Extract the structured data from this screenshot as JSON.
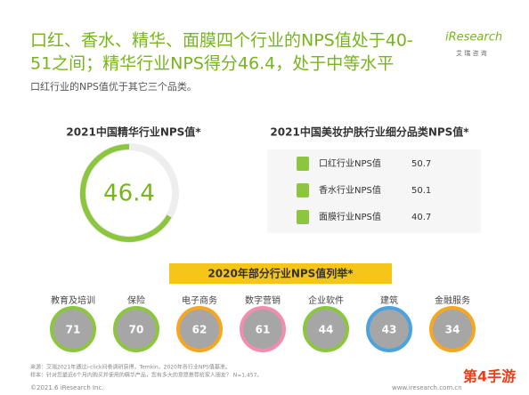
{
  "header": {
    "title_lines": [
      "口红、香水、精华、面膜四个行业的NPS值处于40-",
      "51之间；精华行业NPS得分46.4，处于中等水平"
    ],
    "subtitle": "口红行业的NPS值优于其它三个品类。",
    "logo": "iResearch",
    "logo_sub": "艾 瑞 咨 询"
  },
  "left_panel": {
    "title": "2021中国精华行业NPS值*",
    "value": "46.4"
  },
  "right_panel": {
    "title": "2021中国美妆护肤行业细分品类NPS值*",
    "rows": [
      [
        "口红行业NPS值",
        "50.7"
      ],
      [
        "香水行业NPS值",
        "50.1"
      ],
      [
        "面膜行业NPS值",
        "40.7"
      ]
    ]
  },
  "industries": {
    "title": "2020年部分行业NPS值列举*",
    "items": [
      {
        "label": "教育及培训",
        "value": "71",
        "color": "#8cc63f"
      },
      {
        "label": "保险",
        "value": "70",
        "color": "#8cc63f"
      },
      {
        "label": "电子商务",
        "value": "62",
        "color": "#f5a623"
      },
      {
        "label": "数字营销",
        "value": "61",
        "color": "#f28cb1"
      },
      {
        "label": "企业软件",
        "value": "44",
        "color": "#8cc63f"
      },
      {
        "label": "建筑",
        "value": "43",
        "color": "#4aa3df"
      },
      {
        "label": "金融服务",
        "value": "34",
        "color": "#f5a623"
      }
    ]
  },
  "footer": {
    "source": "来源：艾瑞2021年通过i-click问卷调研获得，Temkin，2020年各行业NPS值基准。",
    "sample": "样本：针对您最近6个月内购买并使用的精华产品，您有多大的意愿推荐给家人朋友？ N=1,457。",
    "copyright": "©2021.6 iResearch Inc.",
    "url": "www.iresearch.com.cn",
    "watermark": "第4手游"
  }
}
